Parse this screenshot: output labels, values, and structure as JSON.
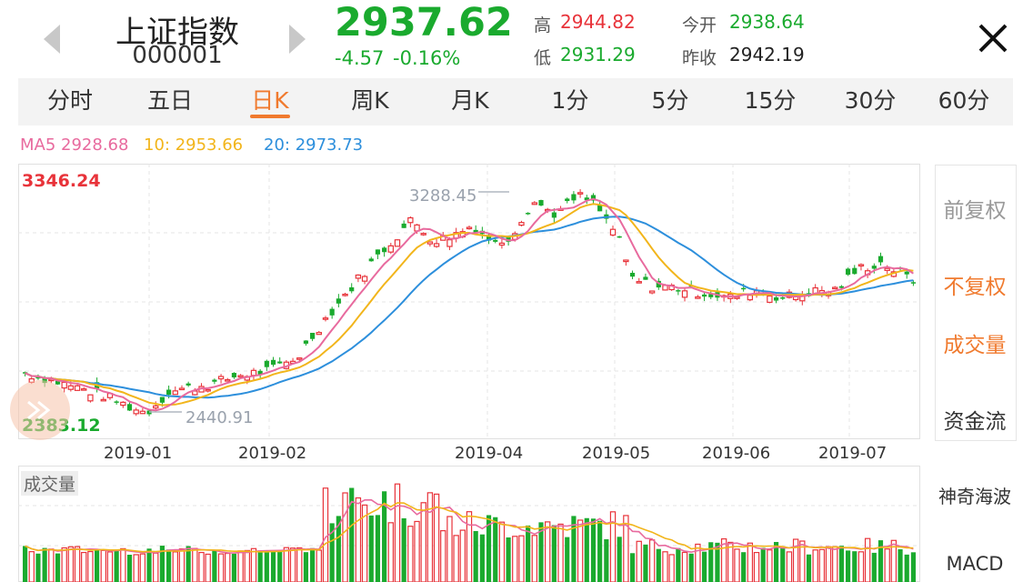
{
  "header": {
    "name": "上证指数",
    "code": "000001",
    "price": "2937.62",
    "change": "-4.57",
    "change_pct": "-0.16%",
    "high_label": "高",
    "high": "2944.82",
    "low_label": "低",
    "low": "2931.29",
    "open_label": "今开",
    "open": "2938.64",
    "prev_close_label": "昨收",
    "prev_close": "2942.19"
  },
  "tabs": [
    "分时",
    "五日",
    "日K",
    "周K",
    "月K",
    "1分",
    "5分",
    "15分",
    "30分",
    "60分"
  ],
  "active_tab": "日K",
  "ma": {
    "ma5": "MA5 2928.68",
    "ma10": "10: 2953.66",
    "ma20": "20: 2973.73"
  },
  "side_menu": [
    "前复权",
    "不复权",
    "成交量",
    "资金流",
    "神奇海波",
    "MACD"
  ],
  "colors": {
    "up": "#e8333a",
    "down": "#1aaa2e",
    "ma5": "#e86a9e",
    "ma10": "#f2b51b",
    "ma20": "#2d8fdc",
    "accent": "#f07a2e"
  },
  "chart_data": {
    "type": "candlestick",
    "y_max_label": "3346.24",
    "y_min_label": "2383.12",
    "annotation_high": "3288.45",
    "annotation_low": "2440.91",
    "x_ticks": [
      "2019-01",
      "2019-02",
      "2019-04",
      "2019-05",
      "2019-06",
      "2019-07"
    ],
    "volume_label": "成交量",
    "close_path": [
      [
        0,
        2600
      ],
      [
        10,
        2560
      ],
      [
        20,
        2520
      ],
      [
        28,
        2470
      ],
      [
        32,
        2450
      ],
      [
        38,
        2530
      ],
      [
        50,
        2560
      ],
      [
        56,
        2590
      ],
      [
        65,
        2610
      ],
      [
        72,
        2660
      ],
      [
        78,
        2780
      ],
      [
        85,
        2900
      ],
      [
        92,
        3020
      ],
      [
        98,
        3110
      ],
      [
        102,
        3170
      ],
      [
        108,
        3090
      ],
      [
        114,
        3120
      ],
      [
        118,
        3150
      ],
      [
        124,
        3080
      ],
      [
        128,
        3110
      ],
      [
        134,
        3240
      ],
      [
        140,
        3190
      ],
      [
        146,
        3260
      ],
      [
        150,
        3230
      ],
      [
        156,
        3120
      ],
      [
        160,
        2950
      ],
      [
        166,
        2920
      ],
      [
        172,
        2920
      ],
      [
        178,
        2900
      ],
      [
        186,
        2880
      ],
      [
        192,
        2910
      ],
      [
        200,
        2880
      ],
      [
        206,
        2900
      ],
      [
        214,
        2910
      ],
      [
        220,
        2990
      ],
      [
        226,
        3010
      ],
      [
        232,
        2960
      ],
      [
        236,
        2930
      ]
    ],
    "candle_count": 137
  }
}
